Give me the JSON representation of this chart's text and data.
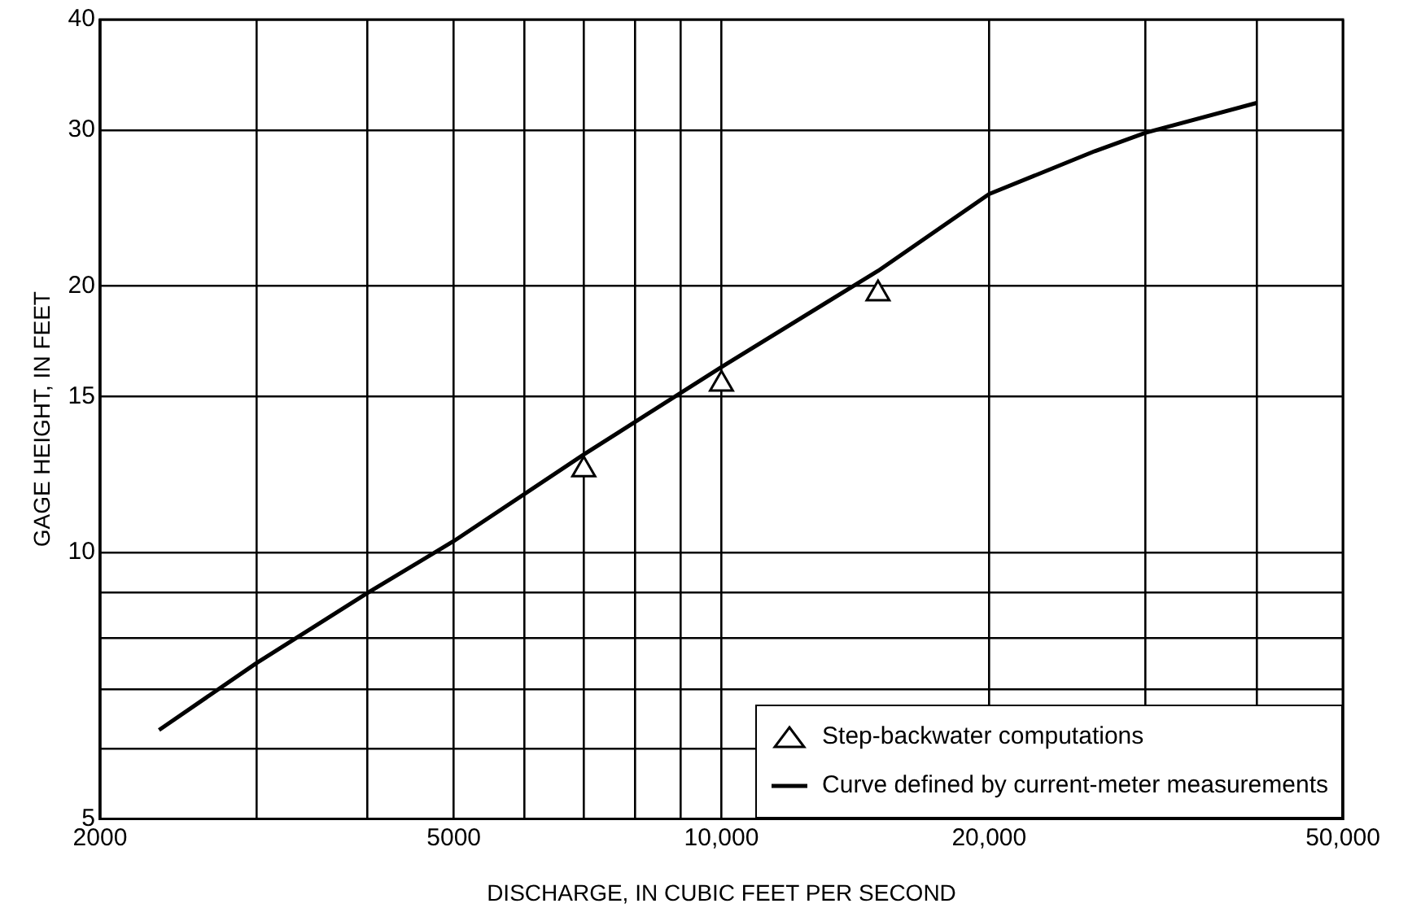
{
  "chart_data": {
    "type": "line",
    "xlabel": "DISCHARGE, IN CUBIC FEET PER SECOND",
    "ylabel": "GAGE HEIGHT, IN FEET",
    "log": "xy",
    "grid": true,
    "legend": "bottom right",
    "xlim": [
      2000,
      50000
    ],
    "xticks": [
      2000,
      {
        "value": 3000,
        "label": null
      },
      {
        "value": 4000,
        "label": null
      },
      5000,
      {
        "value": 6000,
        "label": null
      },
      {
        "value": 7000,
        "label": null
      },
      {
        "value": 8000,
        "label": null
      },
      {
        "value": 9000,
        "label": null
      },
      {
        "value": 10000,
        "label": "10,000"
      },
      {
        "value": 20000,
        "label": "20,000"
      },
      {
        "value": 30000,
        "label": null
      },
      {
        "value": 40000,
        "label": null
      },
      {
        "value": 50000,
        "label": "50,000"
      }
    ],
    "ylim": [
      5,
      40
    ],
    "yticks": [
      5,
      {
        "value": 6,
        "label": null
      },
      {
        "value": 7,
        "label": null
      },
      {
        "value": 8,
        "label": null
      },
      {
        "value": 9,
        "label": null
      },
      10,
      15,
      20,
      30,
      40
    ],
    "series": [
      {
        "name": "Step-backwater computations",
        "type": "scatter",
        "marker": "triangle",
        "color": "#000000",
        "x": [
          7000,
          10000,
          15000
        ],
        "values": [
          12.4,
          15.5,
          19.6
        ]
      },
      {
        "name": "Curve defined by current-meter measurements",
        "marker": "none",
        "line_style": "solid",
        "color": "#000000",
        "x": [
          2330,
          3000,
          4000,
          5000,
          7000,
          10000,
          15000,
          20000,
          26300,
          30000,
          40000
        ],
        "values": [
          6.3,
          7.5,
          9,
          10.3,
          12.9,
          16.2,
          20.8,
          25.4,
          28.4,
          29.8,
          32.2
        ]
      }
    ]
  }
}
